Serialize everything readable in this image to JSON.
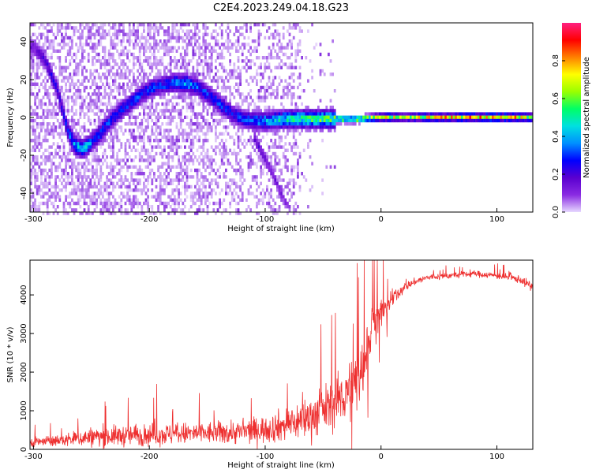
{
  "figure": {
    "title": "C2E4.2023.249.04.18.G23"
  },
  "chart_data": [
    {
      "type": "heatmap",
      "panel": "spectrogram",
      "xlabel": "Height of straight line (km)",
      "ylabel": "Frequency (Hz)",
      "xlim": [
        -303,
        131
      ],
      "ylim": [
        -50,
        50
      ],
      "x_ticks": [
        -300,
        -200,
        -100,
        0,
        100
      ],
      "y_ticks": [
        -40,
        -20,
        0,
        20,
        40
      ],
      "colorbar": {
        "label": "Normalized spectral amplitude",
        "range": [
          0,
          1
        ],
        "ticks": [
          0.0,
          0.2,
          0.4,
          0.6,
          0.8
        ],
        "colormap": [
          "#e6d8ff",
          "#8a2be2",
          "#5a00d0",
          "#0000ff",
          "#0090ff",
          "#00e0e0",
          "#00ff66",
          "#9aff00",
          "#ffff00",
          "#ff8000",
          "#ff0000",
          "#ff2080"
        ]
      },
      "ridge_main": {
        "x": [
          -300,
          -290,
          -280,
          -272,
          -265,
          -258,
          -250,
          -240,
          -230,
          -220,
          -210,
          -200,
          -190,
          -180,
          -170,
          -160,
          -150,
          -140,
          -130,
          -120,
          -110,
          -100,
          -80,
          -60,
          -40,
          -20,
          0,
          20,
          60,
          100,
          131
        ],
        "y": [
          38,
          30,
          15,
          -5,
          -14,
          -16,
          -12,
          -5,
          2,
          7,
          12,
          16,
          18,
          19,
          19,
          17,
          13,
          8,
          3,
          0,
          -1,
          -1,
          0,
          0,
          0,
          0,
          1,
          1,
          1,
          1,
          1
        ],
        "amplitude": [
          0.15,
          0.2,
          0.25,
          0.3,
          0.4,
          0.45,
          0.35,
          0.3,
          0.3,
          0.3,
          0.3,
          0.3,
          0.3,
          0.35,
          0.4,
          0.35,
          0.3,
          0.3,
          0.3,
          0.3,
          0.35,
          0.4,
          0.5,
          0.55,
          0.6,
          0.65,
          0.7,
          0.65,
          0.75,
          0.85,
          0.7
        ]
      },
      "ridge_secondary": {
        "x": [
          -110,
          -100,
          -95,
          -90,
          -85,
          -80
        ],
        "y": [
          -10,
          -22,
          -28,
          -35,
          -42,
          -48
        ],
        "amplitude": [
          0.2,
          0.15,
          0.15,
          0.15,
          0.12,
          0.1
        ]
      }
    },
    {
      "type": "line",
      "panel": "snr",
      "xlabel": "Height of straight line (km)",
      "ylabel": "SNR (10 * v/v)",
      "xlim": [
        -303,
        131
      ],
      "ylim": [
        0,
        4900
      ],
      "x_ticks": [
        -300,
        -200,
        -100,
        0,
        100
      ],
      "y_ticks": [
        0,
        1000,
        2000,
        3000,
        4000
      ],
      "color": "#ee3030",
      "series_envelope": {
        "x": [
          -303,
          -280,
          -250,
          -200,
          -150,
          -120,
          -100,
          -80,
          -60,
          -40,
          -25,
          -15,
          -10,
          -5,
          0,
          5,
          10,
          15,
          20,
          30,
          40,
          60,
          80,
          100,
          120,
          131
        ],
        "mean": [
          180,
          220,
          320,
          380,
          420,
          450,
          520,
          650,
          850,
          1200,
          1600,
          2200,
          2900,
          3400,
          3500,
          3700,
          3900,
          4050,
          4200,
          4350,
          4450,
          4500,
          4550,
          4500,
          4400,
          4200
        ],
        "spread": [
          180,
          220,
          400,
          450,
          450,
          500,
          550,
          700,
          900,
          1000,
          1200,
          1400,
          1100,
          900,
          700,
          500,
          350,
          250,
          180,
          150,
          140,
          130,
          130,
          140,
          160,
          200
        ]
      }
    }
  ]
}
